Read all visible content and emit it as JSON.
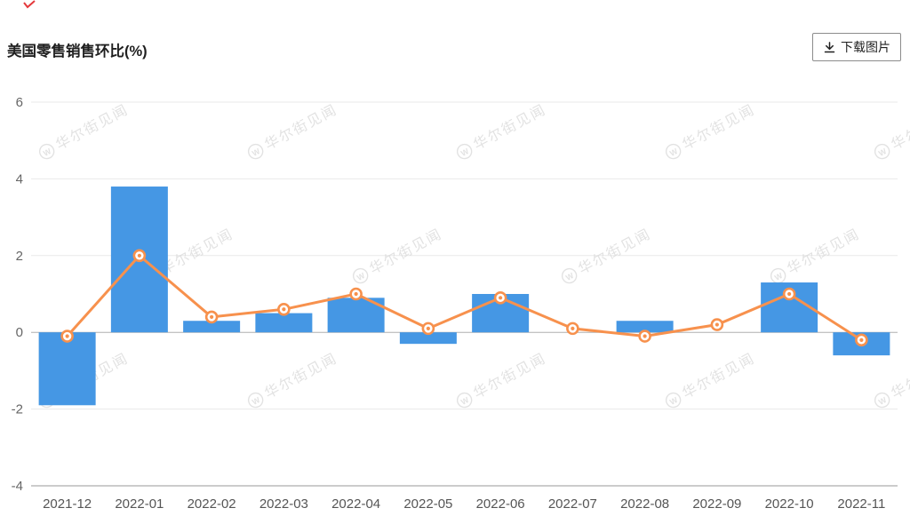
{
  "header": {
    "title": "美国零售销售环比(%)",
    "download_label": "下载图片"
  },
  "watermark": {
    "text": "华尔街见闻",
    "logo_letter": "W"
  },
  "chart_data": {
    "type": "bar",
    "title": "美国零售销售环比(%)",
    "xlabel": "",
    "ylabel": "",
    "categories": [
      "2021-12",
      "2022-01",
      "2022-02",
      "2022-03",
      "2022-04",
      "2022-05",
      "2022-06",
      "2022-07",
      "2022-08",
      "2022-09",
      "2022-10",
      "2022-11"
    ],
    "series": [
      {
        "type": "bar",
        "color": "#4597e4",
        "values": [
          -1.9,
          3.8,
          0.3,
          0.5,
          0.9,
          -0.3,
          1.0,
          0.0,
          0.3,
          0.0,
          1.3,
          -0.6
        ]
      },
      {
        "type": "line",
        "color": "#f7914d",
        "values": [
          -0.1,
          2.0,
          0.4,
          0.6,
          1.0,
          0.1,
          0.9,
          0.1,
          -0.1,
          0.2,
          1.0,
          -0.2
        ]
      }
    ],
    "ylim": [
      -4,
      6
    ],
    "yticks": [
      -4,
      -2,
      0,
      2,
      4,
      6
    ],
    "grid": true,
    "legend": "none"
  }
}
